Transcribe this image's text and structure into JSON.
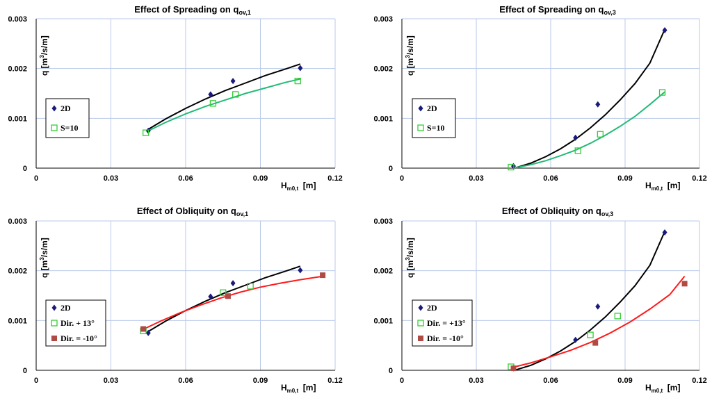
{
  "chart_data": [
    {
      "type": "scatter",
      "title": "Effect of Spreading on q",
      "title_sub": "ov,1",
      "xlabel": "H",
      "xlabel_sub": "m0,t",
      "xlabel_unit": "[m]",
      "ylabel": "q [m",
      "ylabel_sup": "3",
      "ylabel_rest": "/s/m]",
      "xlim": [
        0,
        0.12
      ],
      "ylim": [
        0,
        0.003
      ],
      "xticks": [
        "0",
        "0.03",
        "0.06",
        "0.09",
        "0.12"
      ],
      "yticks": [
        "0",
        "0.001",
        "0.002",
        "0.003"
      ],
      "grid": true,
      "legend_position": "left-middle",
      "series": [
        {
          "name": "2D",
          "marker": "diamond",
          "color": "#1a1a7a",
          "x": [
            0.045,
            0.07,
            0.079,
            0.106
          ],
          "y": [
            0.00075,
            0.00148,
            0.00175,
            0.00201
          ]
        },
        {
          "name": "S=10",
          "marker": "open-square",
          "color": "#33cc33",
          "x": [
            0.044,
            0.071,
            0.08,
            0.105
          ],
          "y": [
            0.00071,
            0.0013,
            0.00148,
            0.00175
          ]
        }
      ],
      "fits": [
        {
          "color": "#000000",
          "x": [
            0.045,
            0.052,
            0.06,
            0.068,
            0.076,
            0.084,
            0.092,
            0.1,
            0.106
          ],
          "y": [
            0.00078,
            0.00099,
            0.0012,
            0.00139,
            0.00156,
            0.00171,
            0.00186,
            0.00199,
            0.00209
          ]
        },
        {
          "color": "#22bb77",
          "x": [
            0.045,
            0.052,
            0.06,
            0.068,
            0.076,
            0.084,
            0.092,
            0.1,
            0.106
          ],
          "y": [
            0.00075,
            0.00092,
            0.00109,
            0.00124,
            0.00137,
            0.0015,
            0.00161,
            0.00172,
            0.00179
          ]
        }
      ]
    },
    {
      "type": "scatter",
      "title": "Effect of Spreading on q",
      "title_sub": "ov,3",
      "xlabel": "H",
      "xlabel_sub": "m0,t",
      "xlabel_unit": "[m]",
      "ylabel": "q [m",
      "ylabel_sup": "3",
      "ylabel_rest": "/s/m]",
      "xlim": [
        0,
        0.12
      ],
      "ylim": [
        0,
        0.003
      ],
      "xticks": [
        "0",
        "0.03",
        "0.06",
        "0.09",
        "0.12"
      ],
      "yticks": [
        "0",
        "0.001",
        "0.002",
        "0.003"
      ],
      "grid": true,
      "legend_position": "left-middle",
      "series": [
        {
          "name": "2D",
          "marker": "diamond",
          "color": "#1a1a7a",
          "x": [
            0.045,
            0.07,
            0.079,
            0.106
          ],
          "y": [
            4e-05,
            0.00061,
            0.00128,
            0.00277
          ]
        },
        {
          "name": "S=10",
          "marker": "open-square",
          "color": "#33cc33",
          "x": [
            0.044,
            0.071,
            0.08,
            0.105
          ],
          "y": [
            2e-05,
            0.00035,
            0.00068,
            0.00152
          ]
        }
      ],
      "fits": [
        {
          "color": "#000000",
          "x": [
            0.046,
            0.052,
            0.058,
            0.064,
            0.07,
            0.076,
            0.082,
            0.088,
            0.094,
            0.1,
            0.106
          ],
          "y": [
            1e-05,
            0.0001,
            0.00023,
            0.00039,
            0.00058,
            0.00081,
            0.00107,
            0.00137,
            0.0017,
            0.00211,
            0.00279
          ]
        },
        {
          "color": "#22bb77",
          "x": [
            0.046,
            0.052,
            0.058,
            0.064,
            0.07,
            0.076,
            0.082,
            0.088,
            0.094,
            0.1,
            0.106
          ],
          "y": [
            1e-05,
            7e-05,
            0.00015,
            0.00025,
            0.00036,
            0.0005,
            0.00066,
            0.00084,
            0.00104,
            0.00128,
            0.00153
          ]
        }
      ]
    },
    {
      "type": "scatter",
      "title": "Effect of Obliquity on q",
      "title_sub": "ov,1",
      "xlabel": "H",
      "xlabel_sub": "m0,t",
      "xlabel_unit": "[m]",
      "ylabel": "q [m",
      "ylabel_sup": "3",
      "ylabel_rest": "/s/m]",
      "xlim": [
        0,
        0.12
      ],
      "ylim": [
        0,
        0.003
      ],
      "xticks": [
        "0",
        "0.03",
        "0.06",
        "0.09",
        "0.12"
      ],
      "yticks": [
        "0",
        "0.001",
        "0.002",
        "0.003"
      ],
      "grid": true,
      "legend_position": "left-bottom",
      "series": [
        {
          "name": "2D",
          "marker": "diamond",
          "color": "#1a1a7a",
          "x": [
            0.045,
            0.07,
            0.079,
            0.106
          ],
          "y": [
            0.00075,
            0.00148,
            0.00175,
            0.00201
          ]
        },
        {
          "name": "Dir. + 13°",
          "marker": "open-square",
          "color": "#33cc33",
          "x": [
            0.043,
            0.075,
            0.086
          ],
          "y": [
            0.00079,
            0.00156,
            0.00169
          ]
        },
        {
          "name": "Dir. = -10°",
          "marker": "filled-square",
          "color": "#b04a45",
          "x": [
            0.043,
            0.077,
            0.115
          ],
          "y": [
            0.00083,
            0.00149,
            0.00191
          ]
        }
      ],
      "fits": [
        {
          "color": "#000000",
          "x": [
            0.045,
            0.052,
            0.06,
            0.068,
            0.076,
            0.084,
            0.092,
            0.1,
            0.106
          ],
          "y": [
            0.00078,
            0.00099,
            0.0012,
            0.00139,
            0.00156,
            0.00171,
            0.00186,
            0.00199,
            0.00209
          ]
        },
        {
          "color": "#ff1a1a",
          "x": [
            0.042,
            0.05,
            0.058,
            0.066,
            0.074,
            0.082,
            0.09,
            0.098,
            0.106,
            0.114,
            0.116
          ],
          "y": [
            0.0008,
            0.00099,
            0.00116,
            0.00131,
            0.00145,
            0.00157,
            0.00167,
            0.00175,
            0.00182,
            0.00188,
            0.00189
          ]
        }
      ]
    },
    {
      "type": "scatter",
      "title": "Effect of Obliquity on q",
      "title_sub": "ov,3",
      "xlabel": "H",
      "xlabel_sub": "m0,t",
      "xlabel_unit": "[m]",
      "ylabel": "q [m",
      "ylabel_sup": "3",
      "ylabel_rest": "/s/m]",
      "xlim": [
        0,
        0.12
      ],
      "ylim": [
        0,
        0.003
      ],
      "xticks": [
        "0",
        "0.03",
        "0.06",
        "0.09",
        "0.12"
      ],
      "yticks": [
        "0",
        "0.001",
        "0.002",
        "0.003"
      ],
      "grid": true,
      "legend_position": "left-middle",
      "series": [
        {
          "name": "2D",
          "marker": "diamond",
          "color": "#1a1a7a",
          "x": [
            0.045,
            0.07,
            0.079,
            0.106
          ],
          "y": [
            4e-05,
            0.00061,
            0.00128,
            0.00277
          ]
        },
        {
          "name": "Dir. = +13°",
          "marker": "open-square",
          "color": "#33cc33",
          "x": [
            0.044,
            0.076,
            0.087
          ],
          "y": [
            7e-05,
            0.00071,
            0.00109
          ]
        },
        {
          "name": "Dir. = -10°",
          "marker": "filled-square",
          "color": "#b04a45",
          "x": [
            0.045,
            0.078,
            0.114
          ],
          "y": [
            4e-05,
            0.00055,
            0.00174
          ]
        }
      ],
      "fits": [
        {
          "color": "#000000",
          "x": [
            0.046,
            0.052,
            0.058,
            0.064,
            0.07,
            0.076,
            0.082,
            0.088,
            0.094,
            0.1,
            0.106
          ],
          "y": [
            1e-05,
            0.0001,
            0.00023,
            0.00039,
            0.00058,
            0.00081,
            0.00107,
            0.00137,
            0.0017,
            0.00211,
            0.00279
          ]
        },
        {
          "color": "#ff1a1a",
          "x": [
            0.044,
            0.052,
            0.06,
            0.068,
            0.076,
            0.084,
            0.092,
            0.1,
            0.108,
            0.114
          ],
          "y": [
            5e-05,
            0.00015,
            0.00027,
            0.0004,
            0.00056,
            0.00075,
            0.00097,
            0.00123,
            0.00152,
            0.00189
          ]
        }
      ]
    }
  ]
}
